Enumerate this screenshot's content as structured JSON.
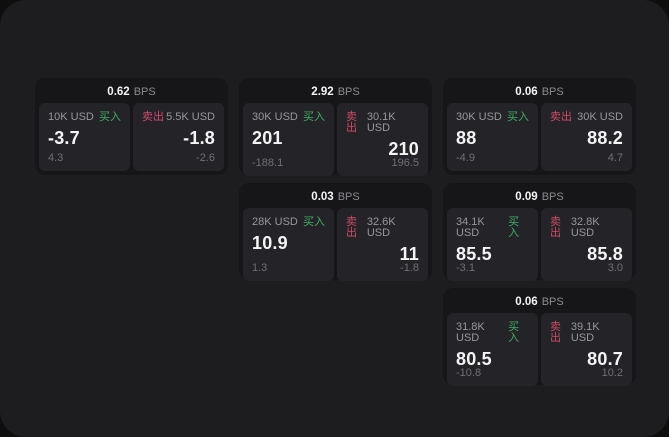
{
  "colors": {
    "buy": "#3fae63",
    "sell": "#cf4a66",
    "frame_background": "#1d1d1f",
    "card_background": "#161618",
    "panel_background": "#242428"
  },
  "unit_label": "BPS",
  "cards": [
    {
      "bps": "0.62",
      "unit": "BPS",
      "grid": {
        "col": 1,
        "row": 1
      },
      "buy": {
        "amount": "10K USD",
        "label": "买入",
        "price": "-3.7",
        "delta": "4.3"
      },
      "sell": {
        "amount": "5.5K USD",
        "label": "卖出",
        "price": "-1.8",
        "delta": "-2.6"
      }
    },
    {
      "bps": "2.92",
      "unit": "BPS",
      "grid": {
        "col": 2,
        "row": 1
      },
      "buy": {
        "amount": "30K USD",
        "label": "买入",
        "price": "201",
        "delta": "-188.1"
      },
      "sell": {
        "amount": "30.1K USD",
        "label": "卖出",
        "price": "210",
        "delta": "196.5"
      }
    },
    {
      "bps": "0.06",
      "unit": "BPS",
      "grid": {
        "col": 3,
        "row": 1
      },
      "buy": {
        "amount": "30K USD",
        "label": "买入",
        "price": "88",
        "delta": "-4.9"
      },
      "sell": {
        "amount": "30K USD",
        "label": "卖出",
        "price": "88.2",
        "delta": "4.7"
      }
    },
    {
      "bps": "0.03",
      "unit": "BPS",
      "grid": {
        "col": 2,
        "row": 2
      },
      "buy": {
        "amount": "28K USD",
        "label": "买入",
        "price": "10.9",
        "delta": "1.3"
      },
      "sell": {
        "amount": "32.6K USD",
        "label": "卖出",
        "price": "11",
        "delta": "-1.8"
      }
    },
    {
      "bps": "0.09",
      "unit": "BPS",
      "grid": {
        "col": 3,
        "row": 2
      },
      "buy": {
        "amount": "34.1K USD",
        "label": "买入",
        "price": "85.5",
        "delta": "-3.1"
      },
      "sell": {
        "amount": "32.8K USD",
        "label": "卖出",
        "price": "85.8",
        "delta": "3.0"
      }
    },
    {
      "bps": "0.06",
      "unit": "BPS",
      "grid": {
        "col": 3,
        "row": 3
      },
      "buy": {
        "amount": "31.8K USD",
        "label": "买入",
        "price": "80.5",
        "delta": "-10.8"
      },
      "sell": {
        "amount": "39.1K USD",
        "label": "卖出",
        "price": "80.7",
        "delta": "10.2"
      }
    }
  ]
}
